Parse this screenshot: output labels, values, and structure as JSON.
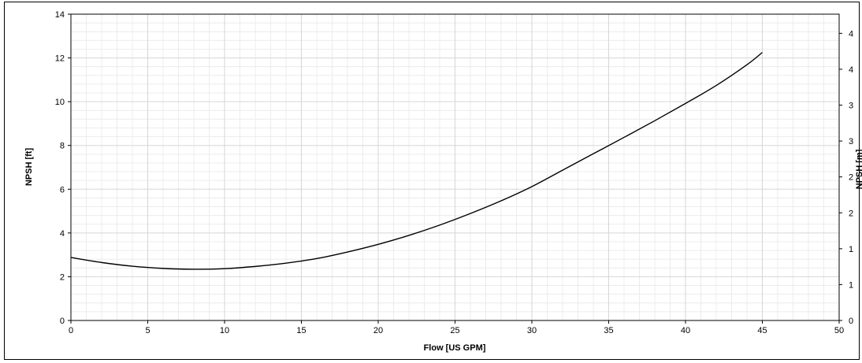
{
  "chart_data": {
    "type": "line",
    "xlabel": "Flow [US GPM]",
    "ylabel": "NPSH [ft]",
    "y2label": "NPSH [m]",
    "xlim": [
      0,
      50
    ],
    "ylim": [
      0,
      14
    ],
    "x_ticks": [
      "0",
      "5",
      "10",
      "15",
      "20",
      "25",
      "30",
      "35",
      "40",
      "45",
      "50"
    ],
    "y_ticks": [
      "0",
      "2",
      "4",
      "6",
      "8",
      "10",
      "12",
      "14"
    ],
    "y2_ticks": [
      "0",
      "1",
      "1",
      "2",
      "2",
      "3",
      "3",
      "4",
      "4"
    ],
    "grid": true,
    "series": [
      {
        "x": [
          0,
          2,
          4,
          6,
          8,
          10,
          12,
          14,
          16,
          18,
          20,
          22,
          24,
          26,
          28,
          30,
          32,
          34,
          36,
          38,
          40,
          42,
          44,
          45
        ],
        "y": [
          2.88,
          2.65,
          2.48,
          2.38,
          2.34,
          2.37,
          2.47,
          2.62,
          2.83,
          3.13,
          3.48,
          3.89,
          4.36,
          4.89,
          5.47,
          6.12,
          6.87,
          7.62,
          8.37,
          9.13,
          9.92,
          10.74,
          11.69,
          12.25
        ],
        "color": "#000000"
      }
    ]
  }
}
